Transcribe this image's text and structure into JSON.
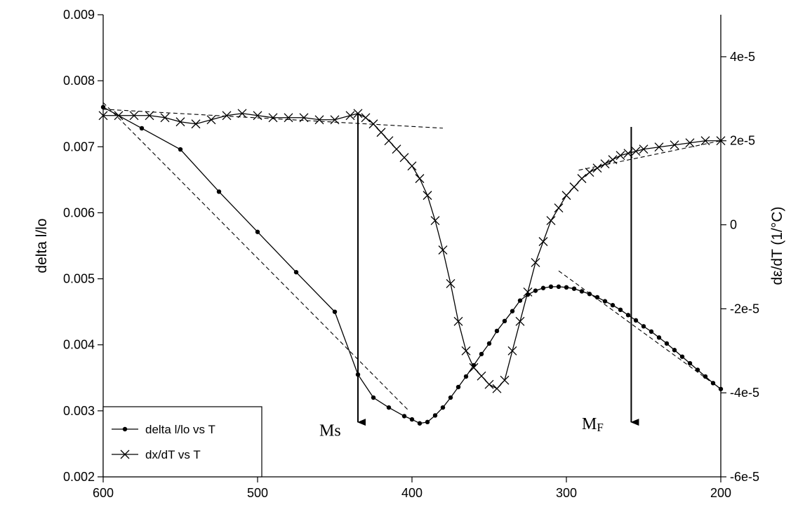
{
  "chart_data": {
    "type": "line",
    "title": "",
    "xlabel": "",
    "ylabel": "delta l/lo",
    "y2label": "dε/dT (1/°C)",
    "xlim": [
      600,
      200
    ],
    "ylim": [
      0.002,
      0.009
    ],
    "y2lim": [
      -6e-05,
      5e-05
    ],
    "x_ticks": [
      600,
      500,
      400,
      300,
      200
    ],
    "x_tick_labels": [
      "600",
      "500",
      "400",
      "300",
      "200"
    ],
    "y_ticks": [
      0.002,
      0.003,
      0.004,
      0.005,
      0.006,
      0.007,
      0.008,
      0.009
    ],
    "y_tick_labels": [
      "0.002",
      "0.003",
      "0.004",
      "0.005",
      "0.006",
      "0.007",
      "0.008",
      "0.009"
    ],
    "y2_ticks": [
      -6e-05,
      -4e-05,
      -2e-05,
      0,
      2e-05,
      4e-05
    ],
    "y2_tick_labels": [
      "-6e-5",
      "-4e-5",
      "-2e-5",
      "0",
      "2e-5",
      "4e-5"
    ],
    "grid": false,
    "legend": {
      "position": "bottom-left"
    },
    "series": [
      {
        "name": "delta l/lo vs T",
        "axis": "left",
        "marker": "dot",
        "x": [
          600,
          575,
          550,
          525,
          500,
          475,
          450,
          435,
          425,
          415,
          405,
          400,
          395,
          390,
          385,
          380,
          375,
          370,
          365,
          360,
          355,
          350,
          345,
          340,
          335,
          330,
          325,
          320,
          315,
          310,
          305,
          300,
          295,
          290,
          285,
          280,
          275,
          270,
          265,
          260,
          255,
          250,
          245,
          240,
          235,
          230,
          225,
          220,
          215,
          210,
          205,
          200
        ],
        "values": [
          0.0076,
          0.00728,
          0.00696,
          0.00632,
          0.00571,
          0.0051,
          0.0045,
          0.00355,
          0.0032,
          0.00305,
          0.00292,
          0.00287,
          0.00281,
          0.00283,
          0.00293,
          0.00305,
          0.0032,
          0.00336,
          0.00352,
          0.00369,
          0.00386,
          0.00402,
          0.00421,
          0.00436,
          0.00451,
          0.00467,
          0.00476,
          0.00482,
          0.00486,
          0.00488,
          0.00488,
          0.00487,
          0.00485,
          0.00481,
          0.00477,
          0.00472,
          0.00466,
          0.0046,
          0.00453,
          0.00445,
          0.00437,
          0.00428,
          0.0042,
          0.00411,
          0.00402,
          0.00392,
          0.00382,
          0.00372,
          0.00362,
          0.00352,
          0.00342,
          0.00333
        ]
      },
      {
        "name": "dx/dT vs T",
        "axis": "right",
        "marker": "x",
        "x": [
          600,
          590,
          580,
          570,
          560,
          550,
          540,
          530,
          520,
          510,
          500,
          490,
          480,
          470,
          460,
          450,
          440,
          435,
          430,
          425,
          420,
          415,
          410,
          405,
          400,
          395,
          390,
          385,
          380,
          375,
          370,
          365,
          360,
          355,
          350,
          345,
          340,
          335,
          330,
          325,
          320,
          315,
          310,
          305,
          300,
          295,
          290,
          285,
          280,
          275,
          270,
          265,
          260,
          255,
          250,
          240,
          230,
          220,
          210,
          200
        ],
        "values": [
          2.6e-05,
          2.6e-05,
          2.6e-05,
          2.6e-05,
          2.55e-05,
          2.45e-05,
          2.4e-05,
          2.5e-05,
          2.6e-05,
          2.65e-05,
          2.6e-05,
          2.55e-05,
          2.55e-05,
          2.55e-05,
          2.5e-05,
          2.5e-05,
          2.6e-05,
          2.65e-05,
          2.55e-05,
          2.4e-05,
          2.2e-05,
          2e-05,
          1.8e-05,
          1.6e-05,
          1.4e-05,
          1.1e-05,
          7e-06,
          1e-06,
          -6e-06,
          -1.4e-05,
          -2.3e-05,
          -3e-05,
          -3.4e-05,
          -3.6e-05,
          -3.8e-05,
          -3.9e-05,
          -3.7e-05,
          -3e-05,
          -2.3e-05,
          -1.6e-05,
          -9e-06,
          -4e-06,
          1e-06,
          4e-06,
          7e-06,
          9e-06,
          1.1e-05,
          1.25e-05,
          1.35e-05,
          1.45e-05,
          1.55e-05,
          1.65e-05,
          1.7e-05,
          1.75e-05,
          1.8e-05,
          1.85e-05,
          1.9e-05,
          1.95e-05,
          2e-05,
          2e-05
        ]
      }
    ],
    "tangent_lines": [
      {
        "axis": "left",
        "x": [
          600,
          402
        ],
        "values": [
          0.00767,
          0.003
        ]
      },
      {
        "axis": "right",
        "x": [
          600,
          380
        ],
        "values": [
          2.75e-05,
          2.3e-05
        ]
      },
      {
        "axis": "right",
        "x": [
          292,
          200
        ],
        "values": [
          1.3e-05,
          2e-05
        ]
      },
      {
        "axis": "left",
        "x": [
          305,
          200
        ],
        "values": [
          0.00512,
          0.00333
        ]
      }
    ],
    "annotations": [
      {
        "text": "Ms",
        "sub": "",
        "arrow_x": 435,
        "arrow_from": 0.0075,
        "arrow_to": 0.0027,
        "label_x": 460,
        "label_y": 0.00262
      },
      {
        "text": "M",
        "sub": "F",
        "arrow_x": 258,
        "arrow_from": 0.0073,
        "arrow_to": 0.0027,
        "label_x": 290,
        "label_y": 0.00272
      }
    ]
  }
}
